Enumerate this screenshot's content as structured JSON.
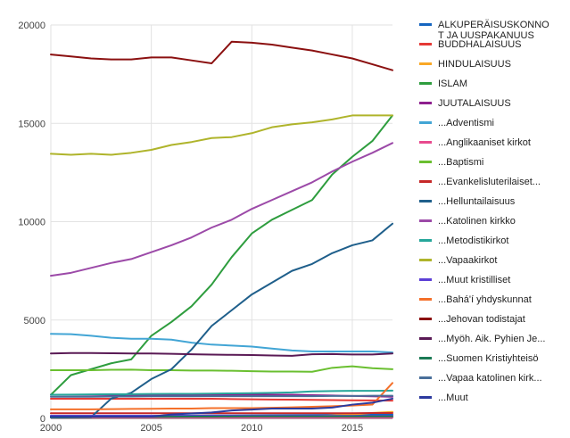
{
  "chart_data": {
    "type": "line",
    "title": "",
    "xlabel": "",
    "ylabel": "",
    "xlim": [
      2000,
      2017
    ],
    "ylim": [
      0,
      20000
    ],
    "x_ticks": [
      2000,
      2005,
      2010,
      2015
    ],
    "y_ticks": [
      0,
      5000,
      10000,
      15000,
      20000
    ],
    "grid": true,
    "legend_position": "right",
    "x": [
      2000,
      2001,
      2002,
      2003,
      2004,
      2005,
      2006,
      2007,
      2008,
      2009,
      2010,
      2011,
      2012,
      2013,
      2014,
      2015,
      2016,
      2017
    ],
    "series": [
      {
        "name": "ALKUPERÄISUSKONNOT JA UUSPAKANUUS",
        "legend_lines": [
          "ALKUPERÄISUSKONNO",
          "T JA UUSPAKANUUS"
        ],
        "color": "#1565c0",
        "values": [
          130,
          130,
          130,
          130,
          130,
          130,
          135,
          140,
          145,
          150,
          155,
          160,
          165,
          170,
          175,
          180,
          185,
          190
        ]
      },
      {
        "name": "BUDDHALAISUUS",
        "color": "#e53935",
        "values": [
          1000,
          1000,
          1000,
          1000,
          1000,
          1000,
          1000,
          1000,
          1000,
          980,
          970,
          960,
          950,
          940,
          930,
          920,
          910,
          900
        ]
      },
      {
        "name": "HINDULAISUUS",
        "color": "#f9a825",
        "values": [
          60,
          60,
          60,
          60,
          60,
          60,
          60,
          60,
          60,
          60,
          60,
          60,
          60,
          100,
          150,
          200,
          280,
          330
        ]
      },
      {
        "name": "ISLAM",
        "color": "#2e9d3e",
        "values": [
          1200,
          2200,
          2500,
          2800,
          3000,
          4200,
          4900,
          5700,
          6800,
          8200,
          9400,
          10100,
          10600,
          11100,
          12400,
          13300,
          14100,
          15400
        ]
      },
      {
        "name": "JUUTALAISUUS",
        "color": "#8e1f8e",
        "values": [
          1200,
          1200,
          1200,
          1200,
          1200,
          1200,
          1200,
          1200,
          1200,
          1200,
          1200,
          1200,
          1200,
          1180,
          1160,
          1140,
          1120,
          1100
        ]
      },
      {
        "name": "...Adventismi",
        "color": "#42a5d5",
        "values": [
          4300,
          4280,
          4200,
          4100,
          4050,
          4050,
          4000,
          3850,
          3750,
          3700,
          3650,
          3550,
          3450,
          3400,
          3400,
          3400,
          3400,
          3350
        ]
      },
      {
        "name": "...Anglikaaniset kirkot",
        "color": "#e84a8e",
        "values": [
          40,
          40,
          40,
          40,
          40,
          40,
          40,
          40,
          40,
          40,
          40,
          40,
          40,
          40,
          40,
          40,
          40,
          40
        ]
      },
      {
        "name": "...Baptismi",
        "color": "#6abf30",
        "values": [
          2450,
          2450,
          2450,
          2470,
          2480,
          2450,
          2450,
          2430,
          2430,
          2420,
          2400,
          2380,
          2380,
          2370,
          2570,
          2650,
          2550,
          2500
        ]
      },
      {
        "name": "...Evankelisluterilaiset...",
        "color": "#c62828",
        "values": [
          260,
          260,
          260,
          260,
          260,
          260,
          260,
          260,
          260,
          260,
          260,
          260,
          260,
          260,
          260,
          260,
          270,
          270
        ]
      },
      {
        "name": "...Helluntailaisuus",
        "color": "#1f5f8b",
        "values": [
          40,
          50,
          60,
          1000,
          1300,
          2000,
          2500,
          3500,
          4700,
          5500,
          6300,
          6900,
          7500,
          7850,
          8400,
          8800,
          9050,
          9900
        ]
      },
      {
        "name": "...Katolinen kirkko",
        "color": "#9c4aa8",
        "values": [
          7250,
          7400,
          7650,
          7900,
          8100,
          8450,
          8800,
          9200,
          9700,
          10100,
          10650,
          11100,
          11550,
          12000,
          12550,
          13050,
          13500,
          14000
        ]
      },
      {
        "name": "...Metodistikirkot",
        "color": "#26a69a",
        "values": [
          1200,
          1210,
          1220,
          1230,
          1230,
          1240,
          1250,
          1250,
          1260,
          1270,
          1280,
          1300,
          1320,
          1370,
          1390,
          1400,
          1400,
          1410
        ]
      },
      {
        "name": "...Vapaakirkot",
        "color": "#afb42b",
        "values": [
          13450,
          13400,
          13450,
          13400,
          13500,
          13650,
          13900,
          14050,
          14250,
          14300,
          14500,
          14800,
          14950,
          15050,
          15200,
          15400,
          15400,
          15400
        ]
      },
      {
        "name": "...Muut kristilliset",
        "color": "#5c3fd6",
        "values": [
          130,
          130,
          130,
          130,
          130,
          130,
          130,
          130,
          130,
          130,
          130,
          130,
          130,
          130,
          130,
          130,
          130,
          130
        ]
      },
      {
        "name": "...Bahá'í yhdyskunnat",
        "color": "#f4702a",
        "values": [
          460,
          460,
          460,
          470,
          480,
          490,
          500,
          500,
          520,
          520,
          520,
          540,
          560,
          590,
          620,
          650,
          700,
          1800
        ]
      },
      {
        "name": "...Jehovan todistajat",
        "color": "#8b1010",
        "values": [
          18500,
          18400,
          18300,
          18250,
          18250,
          18350,
          18350,
          18200,
          18050,
          19150,
          19100,
          19000,
          18850,
          18700,
          18500,
          18300,
          18000,
          17700
        ]
      },
      {
        "name": "...Myöh. Aik. Pyhien Je...",
        "color": "#5a1a55",
        "values": [
          3300,
          3320,
          3320,
          3310,
          3300,
          3300,
          3280,
          3260,
          3240,
          3230,
          3220,
          3200,
          3180,
          3260,
          3270,
          3250,
          3250,
          3300
        ]
      },
      {
        "name": "...Suomen Kristiyhteisö",
        "color": "#1b7a55",
        "values": [
          80,
          80,
          80,
          80,
          80,
          80,
          85,
          90,
          90,
          95,
          100,
          100,
          100,
          100,
          100,
          100,
          100,
          100
        ]
      },
      {
        "name": "...Vapaa katolinen kirk...",
        "color": "#4a6f9a",
        "values": [
          1100,
          1100,
          1100,
          1110,
          1110,
          1120,
          1120,
          1120,
          1130,
          1130,
          1130,
          1130,
          1130,
          1130,
          1140,
          1140,
          1150,
          1150
        ]
      },
      {
        "name": "...Muut",
        "color": "#2c3a9e",
        "values": [
          90,
          90,
          90,
          90,
          90,
          90,
          200,
          250,
          300,
          400,
          450,
          500,
          500,
          500,
          550,
          700,
          800,
          1000
        ]
      }
    ]
  }
}
